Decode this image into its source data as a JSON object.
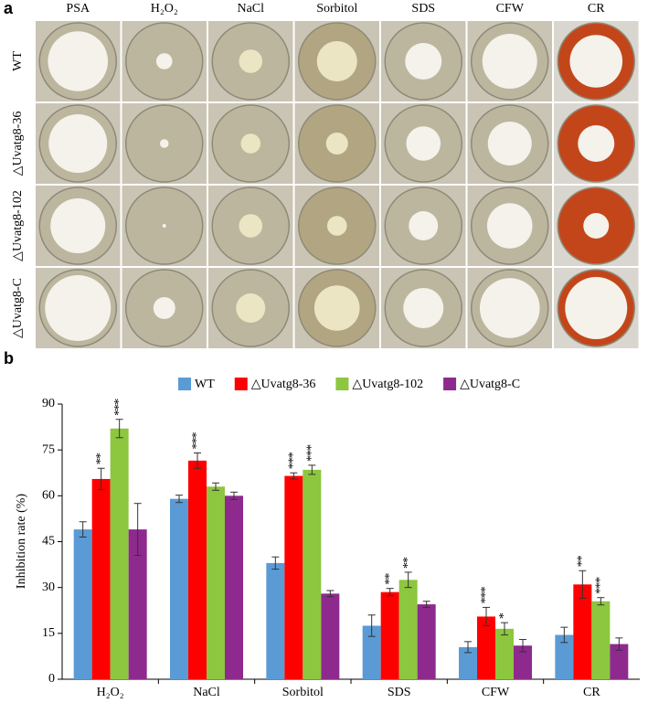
{
  "panel_a": {
    "label": "a",
    "columns": [
      "PSA",
      "H₂O₂",
      "NaCl",
      "Sorbitol",
      "SDS",
      "CFW",
      "CR"
    ],
    "rows": [
      "WT",
      "△Uvatg8-36",
      "△Uvatg8-102",
      "△Uvatg8-C"
    ]
  },
  "panel_b": {
    "label": "b"
  },
  "chart_data": {
    "type": "bar",
    "y_label": "Inhibition rate (%)",
    "categories": [
      "H₂O₂",
      "NaCl",
      "Sorbitol",
      "SDS",
      "CFW",
      "CR"
    ],
    "ylim": [
      0,
      90
    ],
    "yticks": [
      0,
      15,
      30,
      45,
      60,
      75,
      90
    ],
    "series": [
      {
        "name": "WT",
        "color": "#5b9bd5",
        "values": [
          49,
          59,
          38,
          17.5,
          10.5,
          14.5
        ],
        "errors": [
          2.5,
          1.2,
          2,
          3.5,
          1.8,
          2.5
        ],
        "stars": [
          null,
          null,
          null,
          null,
          null,
          null
        ]
      },
      {
        "name": "△Uvatg8-36",
        "color": "#ff0000",
        "values": [
          65.5,
          71.5,
          66.5,
          28.5,
          20.5,
          31
        ],
        "errors": [
          3.5,
          2.5,
          1,
          1.2,
          3,
          4.5
        ],
        "stars": [
          "**",
          "***",
          "***",
          "**",
          "***",
          "**"
        ]
      },
      {
        "name": "△Uvatg8-102",
        "color": "#8dc63f",
        "values": [
          82,
          63,
          68.5,
          32.5,
          16.5,
          25.5
        ],
        "errors": [
          3,
          1.2,
          1.5,
          2.5,
          2,
          1.2
        ],
        "stars": [
          "***",
          null,
          "***",
          "**",
          "*",
          "***"
        ]
      },
      {
        "name": "△Uvatg8-C",
        "color": "#8e2a8e",
        "values": [
          49,
          60,
          28,
          24.5,
          11,
          11.5
        ],
        "errors": [
          8.5,
          1.2,
          1,
          1,
          2,
          2
        ],
        "stars": [
          null,
          null,
          null,
          null,
          null,
          null
        ]
      }
    ]
  }
}
